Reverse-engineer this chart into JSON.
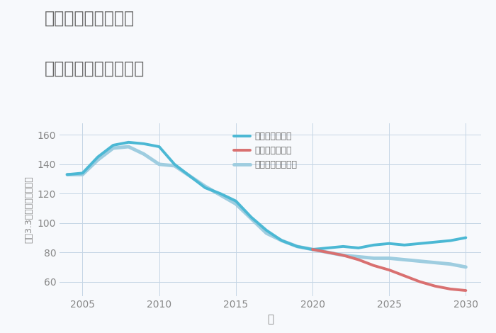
{
  "title_line1": "奈良県奈良市六条の",
  "title_line2": "中古戸建ての価格推移",
  "xlabel": "年",
  "ylabel": "坪（3.3㎡）単価（万円）",
  "background_color": "#f7f9fc",
  "plot_background": "#f7f9fc",
  "ylim": [
    50,
    168
  ],
  "yticks": [
    60,
    80,
    100,
    120,
    140,
    160
  ],
  "good_scenario": {
    "label": "グッドシナリオ",
    "color": "#4bb8d4",
    "linewidth": 2.8,
    "x": [
      2004,
      2005,
      2006,
      2007,
      2008,
      2009,
      2010,
      2011,
      2012,
      2013,
      2014,
      2015,
      2016,
      2017,
      2018,
      2019,
      2020,
      2021,
      2022,
      2023,
      2024,
      2025,
      2026,
      2027,
      2028,
      2029,
      2030
    ],
    "y": [
      133,
      134,
      145,
      153,
      155,
      154,
      152,
      140,
      132,
      124,
      120,
      115,
      104,
      95,
      88,
      84,
      82,
      83,
      84,
      83,
      85,
      86,
      85,
      86,
      87,
      88,
      90
    ]
  },
  "bad_scenario": {
    "label": "バッドシナリオ",
    "color": "#d97070",
    "linewidth": 2.8,
    "x": [
      2020,
      2021,
      2022,
      2023,
      2024,
      2025,
      2026,
      2027,
      2028,
      2029,
      2030
    ],
    "y": [
      82,
      80,
      78,
      75,
      71,
      68,
      64,
      60,
      57,
      55,
      54
    ]
  },
  "normal_scenario": {
    "label": "ノーマルシナリオ",
    "color": "#9ecde0",
    "linewidth": 3.5,
    "x": [
      2004,
      2005,
      2006,
      2007,
      2008,
      2009,
      2010,
      2011,
      2012,
      2013,
      2014,
      2015,
      2016,
      2017,
      2018,
      2019,
      2020,
      2021,
      2022,
      2023,
      2024,
      2025,
      2026,
      2027,
      2028,
      2029,
      2030
    ],
    "y": [
      133,
      133,
      143,
      151,
      152,
      147,
      140,
      139,
      132,
      125,
      119,
      113,
      103,
      93,
      88,
      84,
      82,
      80,
      78,
      77,
      76,
      76,
      75,
      74,
      73,
      72,
      70
    ]
  },
  "grid_color": "#c5d5e5",
  "title_color": "#666666",
  "tick_color": "#888888",
  "legend_text_color": "#666666"
}
